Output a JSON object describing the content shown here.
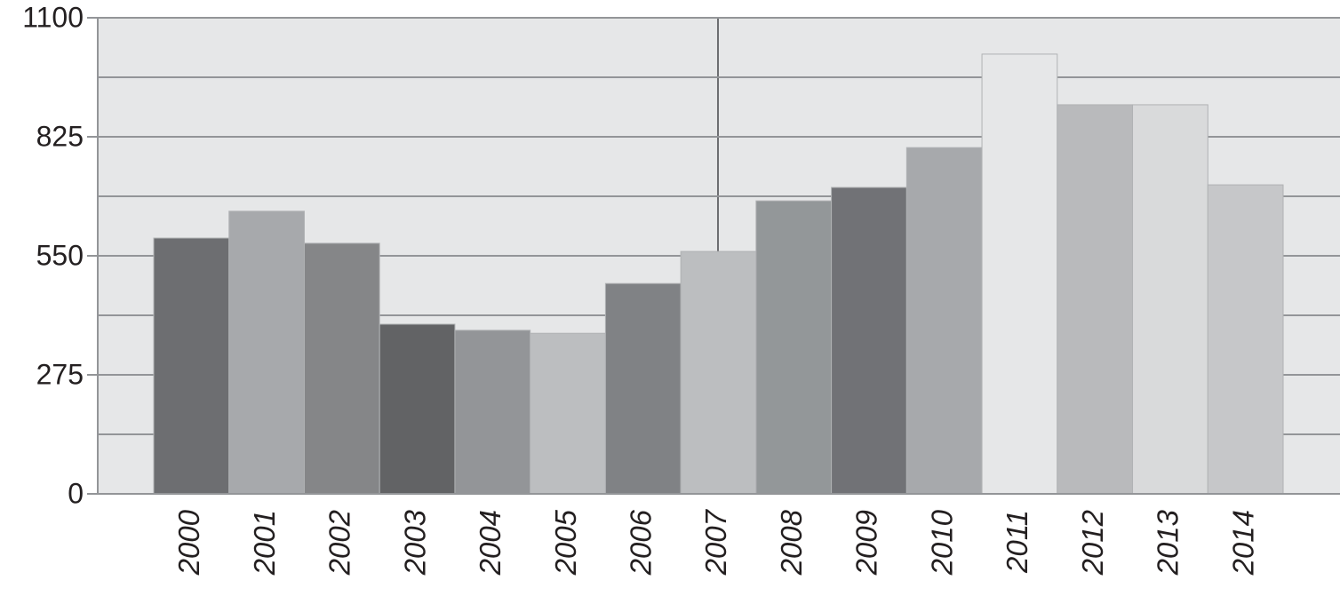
{
  "chart_data": {
    "type": "bar",
    "categories": [
      "2000",
      "2001",
      "2002",
      "2003",
      "2004",
      "2005",
      "2006",
      "2007",
      "2008",
      "2009",
      "2010",
      "2011",
      "2012",
      "2013",
      "2014"
    ],
    "values": [
      591,
      653,
      579,
      392,
      378,
      371,
      486,
      560,
      677,
      708,
      800,
      1016,
      899,
      899,
      714
    ],
    "colors": [
      "#6d6e71",
      "#a7a9ac",
      "#858688",
      "#626365",
      "#939598",
      "#bcbec0",
      "#808285",
      "#bcbec0",
      "#939799",
      "#717276",
      "#a7a9ac",
      "#e6e7e8",
      "#b9babc",
      "#d9dadb",
      "#c6c7c9"
    ],
    "ylim": [
      0,
      1100
    ],
    "yticks": [
      0,
      275,
      550,
      825,
      1100
    ],
    "minor_yticks": [
      137.5,
      412.5,
      687.5,
      962.5
    ],
    "grid": true
  }
}
